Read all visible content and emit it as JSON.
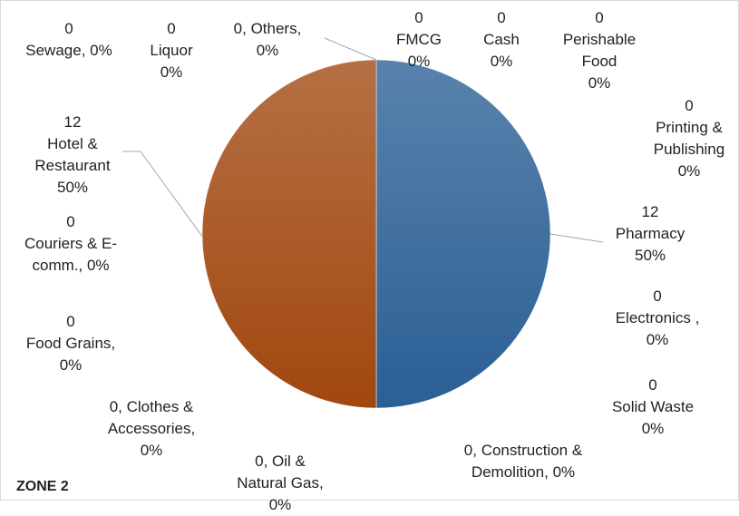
{
  "chart_data": {
    "type": "pie",
    "title": "ZONE 2",
    "categories": [
      "FMCG",
      "Cash",
      "Perishable Food",
      "Printing & Publishing",
      "Pharmacy",
      "Electronics",
      "Solid Waste",
      "Construction & Demolition",
      "Oil & Natural Gas",
      "Clothes & Accessories",
      "Food Grains",
      "Couriers & E-comm.",
      "Hotel & Restaurant",
      "Sewage",
      "Liquor",
      "Others"
    ],
    "values": [
      0,
      0,
      0,
      0,
      12,
      0,
      0,
      0,
      0,
      0,
      0,
      0,
      12,
      0,
      0,
      0
    ],
    "percent_labels": [
      "0%",
      "0%",
      "0%",
      "0%",
      "50%",
      "0%",
      "0%",
      "0%",
      "0%",
      "0%",
      "0%",
      "0%",
      "50%",
      "0%",
      "0%",
      "0%"
    ],
    "colors": [
      "#4472c4",
      "#ed7d31",
      "#a5a5a5",
      "#ffc000",
      "#2a5f95",
      "#70ad47",
      "#264478",
      "#9e480e",
      "#636363",
      "#997300",
      "#255e91",
      "#43682b",
      "#a1470f",
      "#698ed0",
      "#f1975a",
      "#b7b7b7"
    ]
  }
}
